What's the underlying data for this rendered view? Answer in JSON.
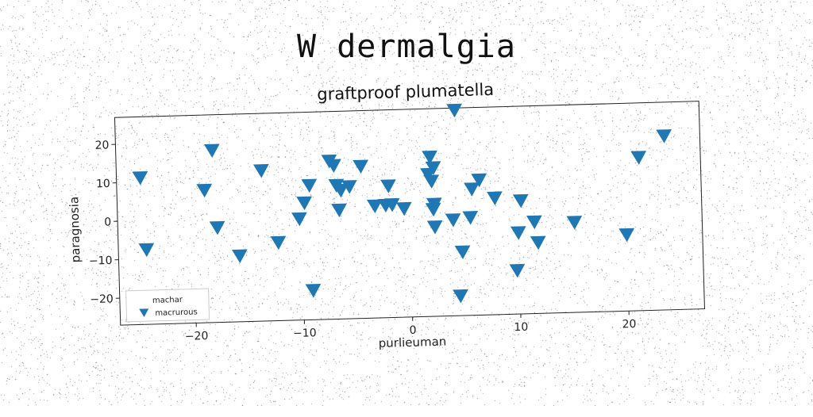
{
  "suptitle": "W dermalgia",
  "chart_data": {
    "type": "scatter",
    "title": "graftproof plumatella",
    "xlabel": "purlieuman",
    "ylabel": "paragnosia",
    "xlim": [
      -27,
      27
    ],
    "ylim": [
      -27,
      27
    ],
    "xticks": [
      -20,
      -10,
      0,
      10,
      20
    ],
    "yticks": [
      -20,
      -10,
      0,
      10,
      20
    ],
    "tick_labels_x": [
      "−20",
      "−10",
      "0",
      "10",
      "20"
    ],
    "tick_labels_y": [
      "−20",
      "−10",
      "0",
      "10",
      "20"
    ],
    "grid": false,
    "legend": {
      "title": "machar",
      "placement": "lower-left"
    },
    "colors": {
      "series": "#1f77b4",
      "axis": "#222222"
    },
    "series": [
      {
        "name": "macrurous",
        "marker": "triangle-down",
        "points": [
          [
            4.4,
            26.5
          ],
          [
            -24.8,
            11.2
          ],
          [
            -24.4,
            -7.5
          ],
          [
            -18.9,
            7.5
          ],
          [
            -18.1,
            17.8
          ],
          [
            -17.8,
            -2.3
          ],
          [
            -15.8,
            -9.8
          ],
          [
            -13.6,
            12.2
          ],
          [
            -12.2,
            -6.6
          ],
          [
            -10.2,
            -0.6
          ],
          [
            -9.7,
            3.5
          ],
          [
            -9.2,
            8.0
          ],
          [
            -9.1,
            -19.3
          ],
          [
            -7.3,
            14.2
          ],
          [
            -6.9,
            13.0
          ],
          [
            -6.7,
            7.8
          ],
          [
            -6.5,
            1.4
          ],
          [
            -6.3,
            6.5
          ],
          [
            -5.5,
            7.4
          ],
          [
            -4.4,
            12.6
          ],
          [
            -3.2,
            2.2
          ],
          [
            -2.2,
            2.3
          ],
          [
            -1.9,
            7.3
          ],
          [
            -1.6,
            2.4
          ],
          [
            -0.5,
            1.3
          ],
          [
            1.8,
            10.0
          ],
          [
            2.0,
            14.5
          ],
          [
            2.1,
            8.2
          ],
          [
            2.3,
            11.7
          ],
          [
            2.3,
            2.2
          ],
          [
            2.2,
            0.9
          ],
          [
            2.3,
            -3.7
          ],
          [
            4.0,
            -2.0
          ],
          [
            4.5,
            -21.8
          ],
          [
            4.8,
            -10.4
          ],
          [
            5.6,
            -1.5
          ],
          [
            5.8,
            5.9
          ],
          [
            6.5,
            8.2
          ],
          [
            7.9,
            3.4
          ],
          [
            9.8,
            -15.6
          ],
          [
            10.0,
            -5.8
          ],
          [
            10.3,
            2.5
          ],
          [
            11.5,
            -3.1
          ],
          [
            11.8,
            -8.5
          ],
          [
            15.2,
            -3.5
          ],
          [
            20.0,
            -7.1
          ],
          [
            21.3,
            12.9
          ],
          [
            23.7,
            18.3
          ]
        ]
      }
    ]
  }
}
